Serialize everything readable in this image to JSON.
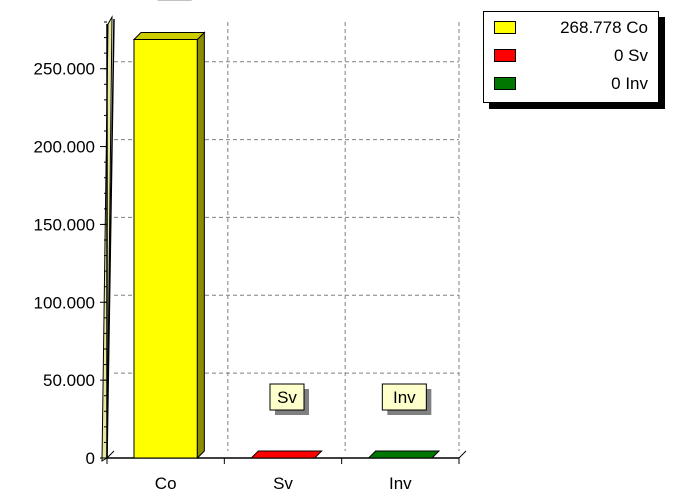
{
  "chart_data": {
    "type": "bar",
    "categories": [
      "Co",
      "Sv",
      "Inv"
    ],
    "values": [
      268778,
      0,
      0
    ],
    "colors": [
      "#ffff00",
      "#ff0000",
      "#007700"
    ],
    "bar_labels": [
      "Co",
      "Sv",
      "Inv"
    ],
    "ylim": [
      0,
      280000
    ],
    "yticks": [
      0,
      50000,
      100000,
      150000,
      200000,
      250000
    ],
    "ytick_labels": [
      "0",
      "50.000",
      "100.000",
      "150.000",
      "200.000",
      "250.000"
    ],
    "grid": true,
    "style": "3d",
    "legend_position": "top-right",
    "legend": [
      {
        "label": "268.778 Co",
        "color": "#ffff00"
      },
      {
        "label": "0 Sv",
        "color": "#ff0000"
      },
      {
        "label": "0 Inv",
        "color": "#007700"
      }
    ]
  }
}
